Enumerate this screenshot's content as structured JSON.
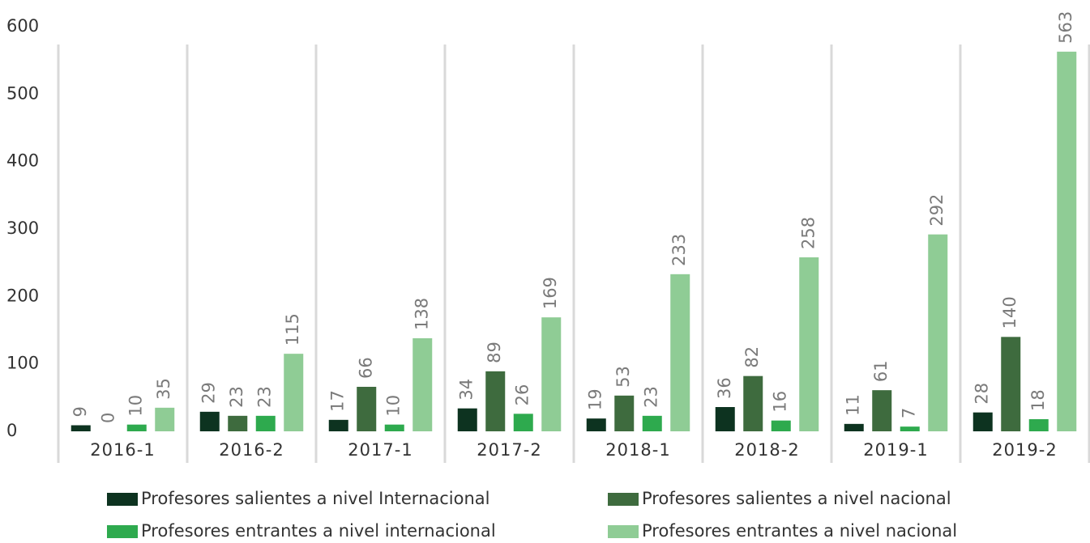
{
  "chart_data": {
    "type": "bar",
    "categories": [
      "2016-1",
      "2016-2",
      "2017-1",
      "2017-2",
      "2018-1",
      "2018-2",
      "2019-1",
      "2019-2"
    ],
    "series": [
      {
        "name": "Profesores salientes a nivel Internacional",
        "color": "#0d3320",
        "values": [
          9,
          29,
          17,
          34,
          19,
          36,
          11,
          28
        ]
      },
      {
        "name": "Profesores salientes a nivel nacional",
        "color": "#3e6b3e",
        "values": [
          0,
          23,
          66,
          89,
          53,
          82,
          61,
          140
        ]
      },
      {
        "name": "Profesores entrantes a nivel internacional",
        "color": "#2eaa4e",
        "values": [
          10,
          23,
          10,
          26,
          23,
          16,
          7,
          18
        ]
      },
      {
        "name": "Profesores entrantes a nivel nacional",
        "color": "#8fcc95",
        "values": [
          35,
          115,
          138,
          169,
          233,
          258,
          292,
          563
        ]
      }
    ],
    "ylim": [
      0,
      600
    ],
    "yticks": [
      0,
      100,
      200,
      300,
      400,
      500,
      600
    ],
    "grid": false,
    "legend": "bottom"
  }
}
